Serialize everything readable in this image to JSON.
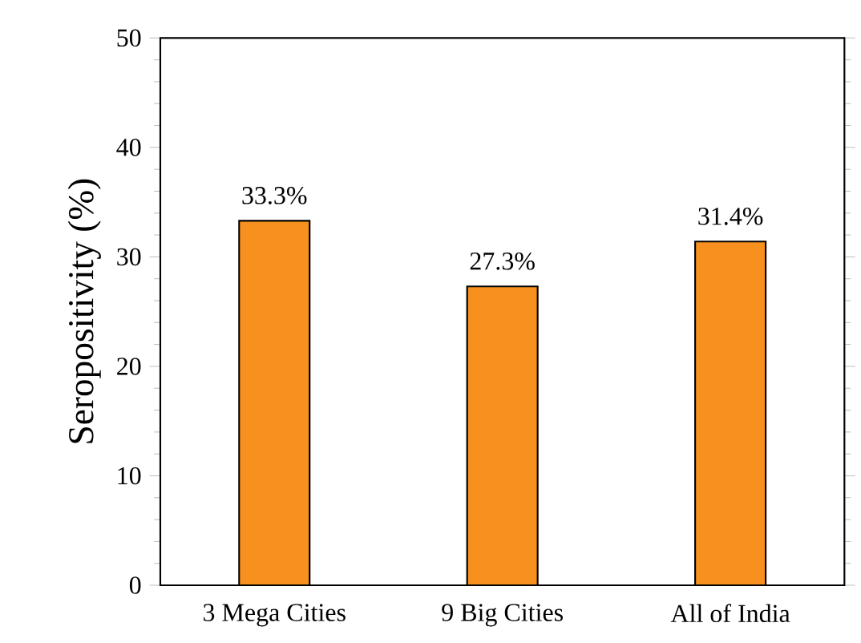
{
  "chart_data": {
    "type": "bar",
    "ylabel": "Seropositivity (%)",
    "categories": [
      "3 Mega Cities",
      "9 Big Cities",
      "All of India"
    ],
    "values": [
      33.3,
      27.3,
      31.4
    ],
    "value_labels": [
      "33.3%",
      "27.3%",
      "31.4%"
    ],
    "color": "#f7901e",
    "ylim": [
      0,
      50
    ],
    "yticks": [
      0,
      10,
      20,
      30,
      40,
      50
    ]
  }
}
